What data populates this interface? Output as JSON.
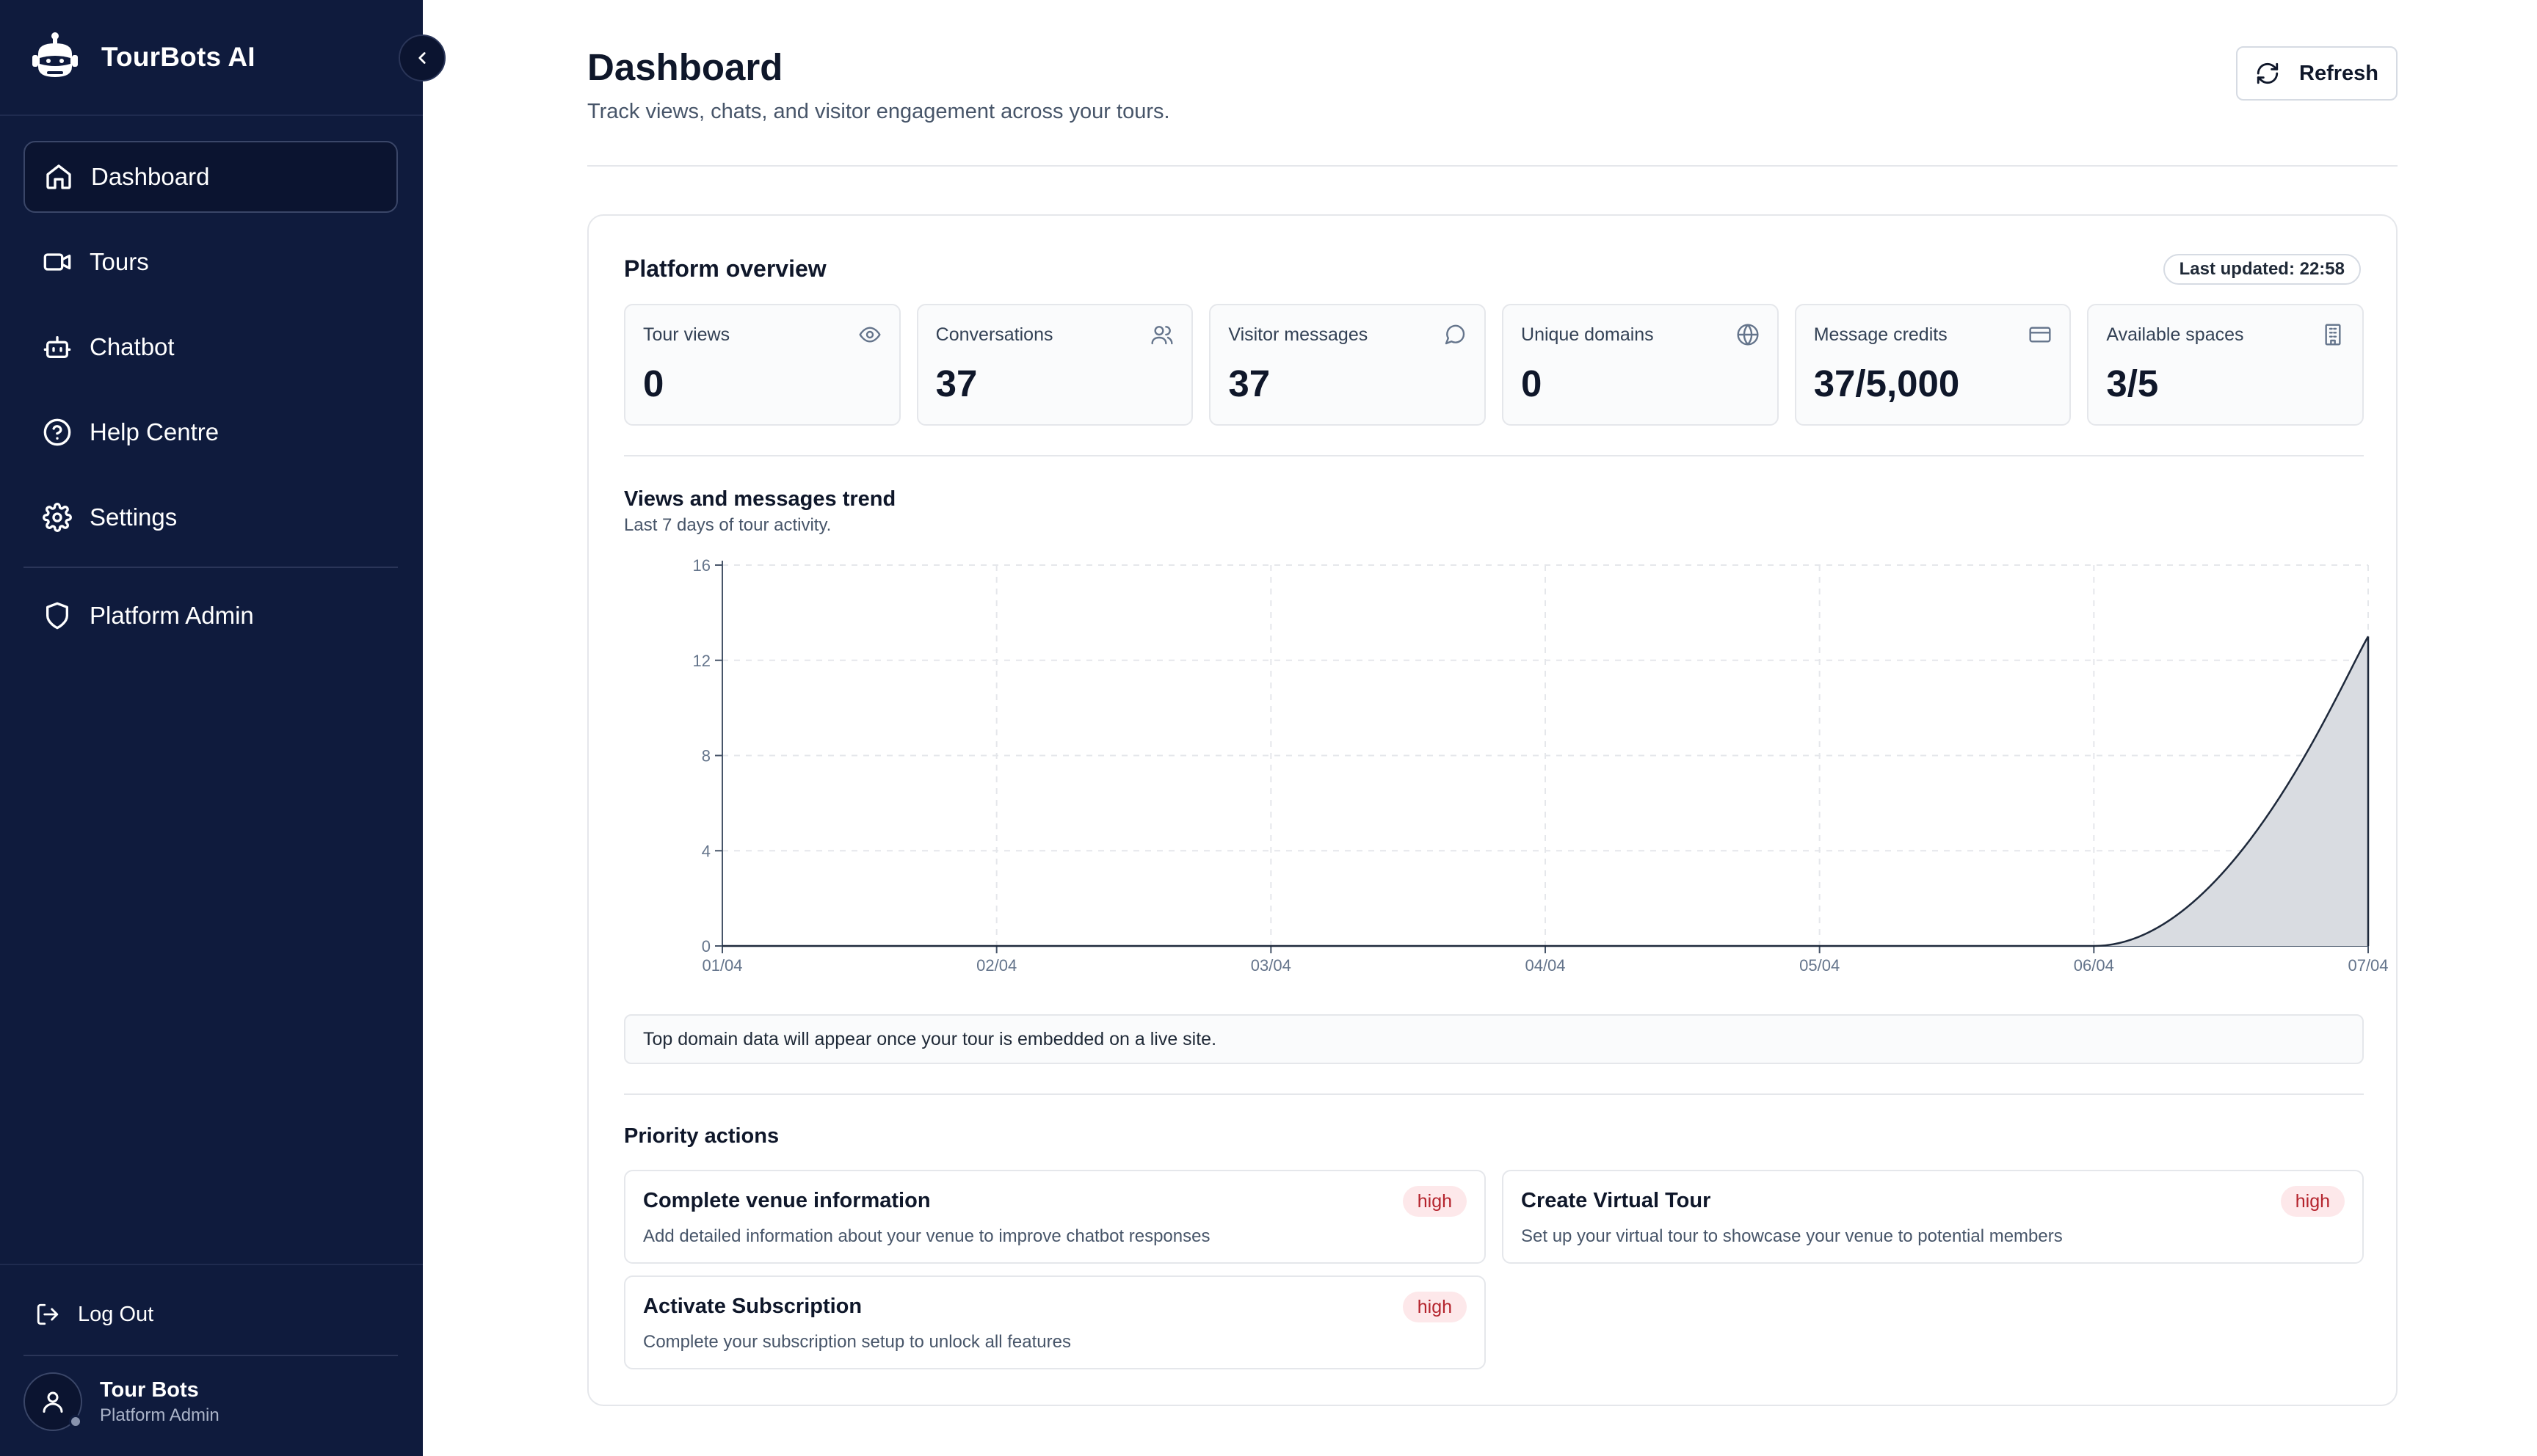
{
  "app": {
    "brand": "TourBots AI"
  },
  "sidebar": {
    "items": [
      {
        "label": "Dashboard",
        "icon": "home-icon",
        "active": true
      },
      {
        "label": "Tours",
        "icon": "video-icon"
      },
      {
        "label": "Chatbot",
        "icon": "bot-icon"
      },
      {
        "label": "Help Centre",
        "icon": "help-circle-icon"
      },
      {
        "label": "Settings",
        "icon": "gear-icon"
      }
    ],
    "admin_item": {
      "label": "Platform Admin",
      "icon": "shield-icon"
    },
    "logout_label": "Log Out",
    "user": {
      "name": "Tour Bots",
      "role": "Platform Admin"
    }
  },
  "header": {
    "title": "Dashboard",
    "subtitle": "Track views, chats, and visitor engagement across your tours.",
    "refresh_label": "Refresh"
  },
  "overview": {
    "title": "Platform overview",
    "last_updated": "Last updated: 22:58",
    "stats": [
      {
        "label": "Tour views",
        "value": "0",
        "icon": "eye-icon"
      },
      {
        "label": "Conversations",
        "value": "37",
        "icon": "users-icon"
      },
      {
        "label": "Visitor messages",
        "value": "37",
        "icon": "message-icon"
      },
      {
        "label": "Unique domains",
        "value": "0",
        "icon": "globe-icon"
      },
      {
        "label": "Message credits",
        "value": "37/5,000",
        "icon": "credit-card-icon"
      },
      {
        "label": "Available spaces",
        "value": "3/5",
        "icon": "building-icon"
      }
    ]
  },
  "trend": {
    "title": "Views and messages trend",
    "subtitle": "Last 7 days of tour activity."
  },
  "chart_data": {
    "type": "area",
    "title": "Views and messages trend",
    "subtitle": "Last 7 days of tour activity.",
    "categories": [
      "01/04",
      "02/04",
      "03/04",
      "04/04",
      "05/04",
      "06/04",
      "07/04"
    ],
    "series": [
      {
        "values": [
          0,
          0,
          0,
          0,
          0,
          0,
          13
        ],
        "color": "#d9dce1"
      }
    ],
    "yticks": [
      0,
      4,
      8,
      12,
      16
    ],
    "ylim": [
      0,
      16
    ],
    "grid": true
  },
  "domains_notice": "Top domain data will appear once your tour is embedded on a live site.",
  "priority": {
    "title": "Priority actions",
    "actions": [
      {
        "title": "Complete venue information",
        "desc": "Add detailed information about your venue to improve chatbot responses",
        "badge": "high"
      },
      {
        "title": "Create Virtual Tour",
        "desc": "Set up your virtual tour to showcase your venue to potential members",
        "badge": "high"
      },
      {
        "title": "Activate Subscription",
        "desc": "Complete your subscription setup to unlock all features",
        "badge": "high"
      }
    ]
  }
}
